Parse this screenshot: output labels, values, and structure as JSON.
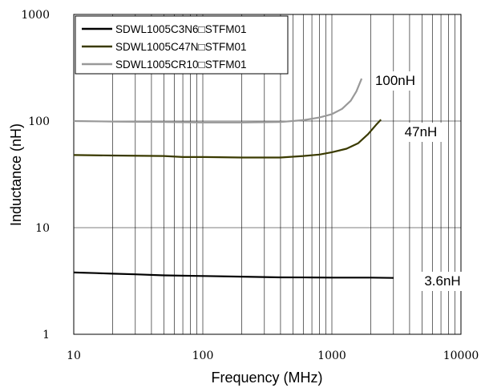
{
  "chart_data": {
    "type": "line",
    "xlabel": "Frequency (MHz)",
    "ylabel": "Inductance (nH)",
    "x_scale": "log",
    "y_scale": "log",
    "xlim": [
      10,
      10000
    ],
    "ylim": [
      1,
      1000
    ],
    "x_ticks": [
      "10",
      "100",
      "1000",
      "10000"
    ],
    "y_ticks": [
      "1",
      "10",
      "100",
      "1000"
    ],
    "grid": true,
    "legend_position": "top-left",
    "series": [
      {
        "name": "SDWL1005C3N6□STFM01",
        "color": "#000000",
        "points": [
          [
            10,
            3.8
          ],
          [
            15,
            3.75
          ],
          [
            20,
            3.7
          ],
          [
            30,
            3.65
          ],
          [
            50,
            3.57
          ],
          [
            100,
            3.52
          ],
          [
            200,
            3.47
          ],
          [
            400,
            3.42
          ],
          [
            700,
            3.41
          ],
          [
            1000,
            3.4
          ],
          [
            2000,
            3.4
          ],
          [
            3000,
            3.38
          ]
        ]
      },
      {
        "name": "SDWL1005C47N□STFM01",
        "color": "#3a3a00",
        "points": [
          [
            10,
            48
          ],
          [
            20,
            47.5
          ],
          [
            50,
            47
          ],
          [
            70,
            46
          ],
          [
            100,
            46
          ],
          [
            200,
            45.5
          ],
          [
            400,
            45.5
          ],
          [
            600,
            47
          ],
          [
            800,
            48.5
          ],
          [
            1000,
            51
          ],
          [
            1300,
            55
          ],
          [
            1600,
            62
          ],
          [
            1900,
            75
          ],
          [
            2200,
            92
          ],
          [
            2400,
            103
          ]
        ]
      },
      {
        "name": "SDWL1005CR10□STFM01",
        "color": "#999999",
        "points": [
          [
            10,
            100
          ],
          [
            20,
            99
          ],
          [
            50,
            98
          ],
          [
            100,
            97
          ],
          [
            200,
            97
          ],
          [
            400,
            98
          ],
          [
            600,
            102
          ],
          [
            800,
            108
          ],
          [
            1000,
            116
          ],
          [
            1200,
            130
          ],
          [
            1400,
            155
          ],
          [
            1550,
            190
          ],
          [
            1700,
            250
          ]
        ]
      }
    ],
    "annotations": [
      {
        "text": "100nH",
        "series": 2
      },
      {
        "text": "47nH",
        "series": 1
      },
      {
        "text": "3.6nH",
        "series": 0
      }
    ]
  }
}
